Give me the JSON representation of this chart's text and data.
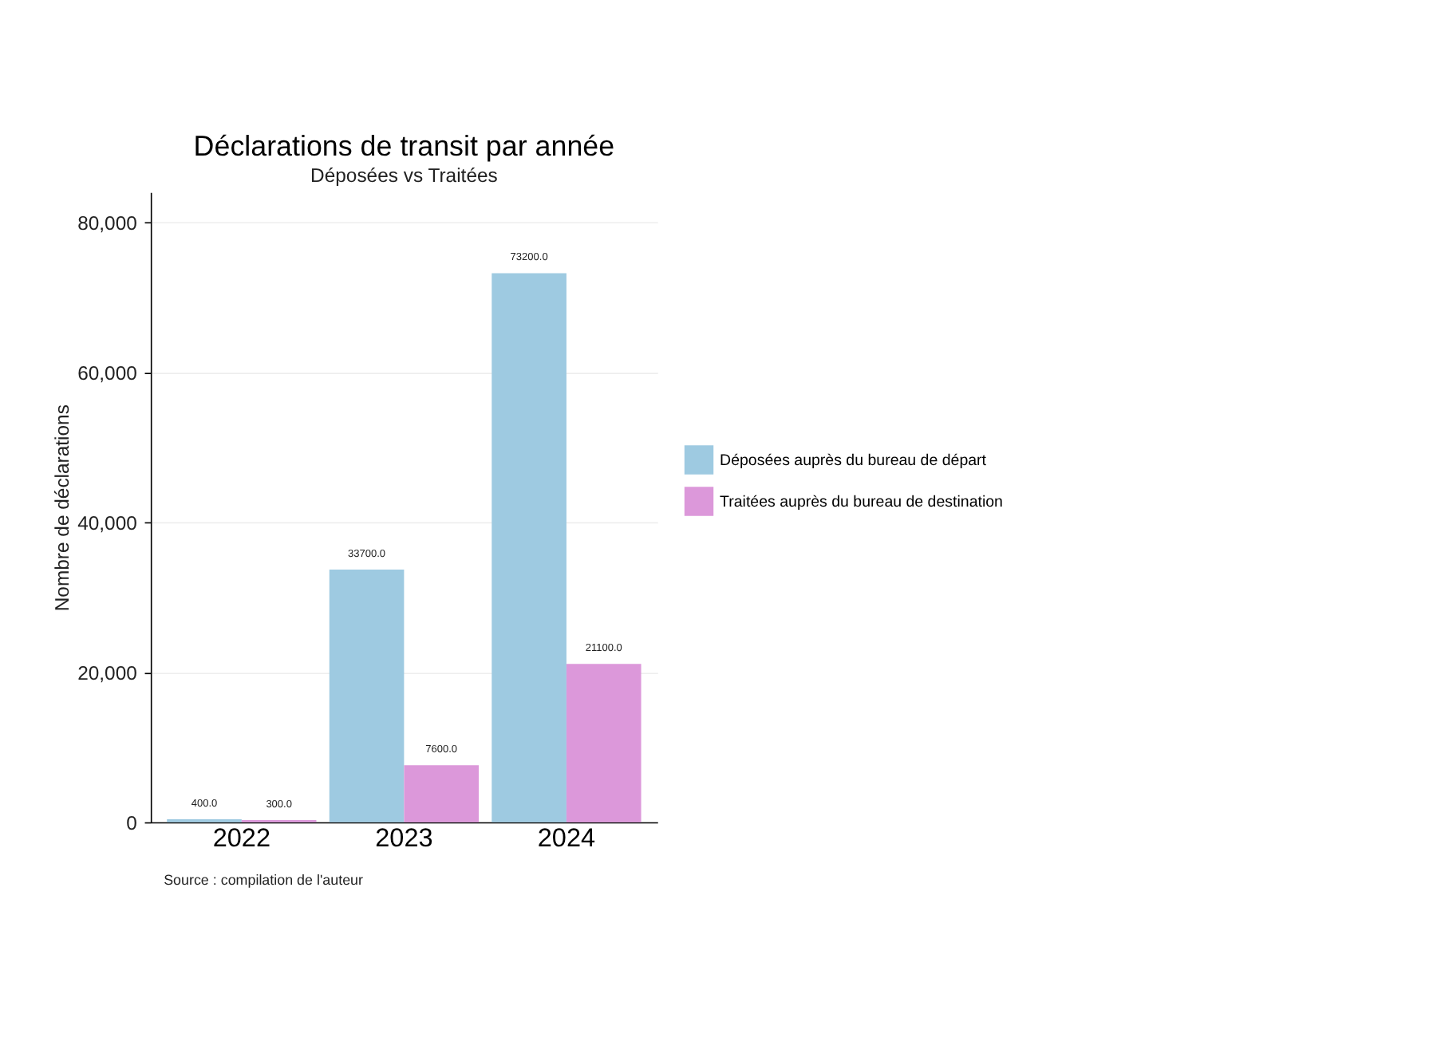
{
  "chart_data": {
    "type": "bar",
    "title": "Déclarations de transit par année",
    "subtitle": "Déposées vs Traitées",
    "ylabel": "Nombre de déclarations",
    "categories": [
      "2022",
      "2023",
      "2024"
    ],
    "series": [
      {
        "name": "Déposées auprès du bureau de départ",
        "color": "#9ecae1",
        "values": [
          400,
          33700,
          73200
        ],
        "value_labels": [
          "400.0",
          "33700.0",
          "73200.0"
        ]
      },
      {
        "name": "Traitées auprès du bureau de destination",
        "color": "#dc98da",
        "values": [
          300,
          7600,
          21100
        ],
        "value_labels": [
          "300.0",
          "7600.0",
          "21100.0"
        ]
      }
    ],
    "ylim": [
      0,
      84000
    ],
    "yticks": [
      0,
      {
        "value": 20000,
        "label": "20,000"
      },
      {
        "value": 40000,
        "label": "40,000"
      },
      {
        "value": 60000,
        "label": "60,000"
      },
      {
        "value": 80000,
        "label": "80,000"
      }
    ],
    "grid": "y",
    "legend": "right",
    "annotations": [
      "Source : compilation de l'auteur"
    ]
  }
}
